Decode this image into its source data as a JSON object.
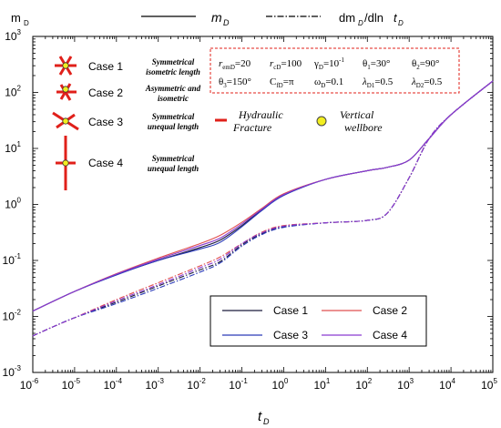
{
  "chart_data": {
    "type": "line",
    "log_x": true,
    "log_y": true,
    "xlim": [
      1e-06,
      100000.0
    ],
    "ylim": [
      0.001,
      1000.0
    ],
    "xlabel": {
      "main": "t",
      "sub": "D"
    },
    "ylabel": {
      "main": "m",
      "sub": "D"
    },
    "x_ticks": [
      {
        "exp": -6,
        "label_base": "10",
        "label_exp": "-6"
      },
      {
        "exp": -5,
        "label_base": "10",
        "label_exp": "-5"
      },
      {
        "exp": -4,
        "label_base": "10",
        "label_exp": "-4"
      },
      {
        "exp": -3,
        "label_base": "10",
        "label_exp": "-3"
      },
      {
        "exp": -2,
        "label_base": "10",
        "label_exp": "-2"
      },
      {
        "exp": -1,
        "label_base": "10",
        "label_exp": "-1"
      },
      {
        "exp": 0,
        "label_base": "10",
        "label_exp": "0"
      },
      {
        "exp": 1,
        "label_base": "10",
        "label_exp": "1"
      },
      {
        "exp": 2,
        "label_base": "10",
        "label_exp": "2"
      },
      {
        "exp": 3,
        "label_base": "10",
        "label_exp": "3"
      },
      {
        "exp": 4,
        "label_base": "10",
        "label_exp": "4"
      },
      {
        "exp": 5,
        "label_base": "10",
        "label_exp": "5"
      }
    ],
    "y_ticks": [
      {
        "exp": -3,
        "label_base": "10",
        "label_exp": "-3"
      },
      {
        "exp": -2,
        "label_base": "10",
        "label_exp": "-2"
      },
      {
        "exp": -1,
        "label_base": "10",
        "label_exp": "-1"
      },
      {
        "exp": 0,
        "label_base": "10",
        "label_exp": "0"
      },
      {
        "exp": 1,
        "label_base": "10",
        "label_exp": "1"
      },
      {
        "exp": 2,
        "label_base": "10",
        "label_exp": "2"
      },
      {
        "exp": 3,
        "label_base": "10",
        "label_exp": "3"
      }
    ],
    "grid": false,
    "line_style_legend": {
      "solid": {
        "main": "m",
        "sub": "D"
      },
      "dashdot": {
        "prefix": "dm",
        "sub1": "D",
        "mid": "/dln",
        "t": "t",
        "sub2": "D"
      }
    },
    "series": [
      {
        "name": "Case 1",
        "color": "#1a1a3a",
        "solid": [
          [
            1e-06,
            0.0125
          ],
          [
            1e-05,
            0.028
          ],
          [
            0.0001,
            0.056
          ],
          [
            0.001,
            0.1
          ],
          [
            0.01,
            0.17
          ],
          [
            0.03,
            0.23
          ],
          [
            0.1,
            0.42
          ],
          [
            0.3,
            0.8
          ],
          [
            1,
            1.5
          ],
          [
            10,
            2.8
          ],
          [
            100,
            4.0
          ],
          [
            300,
            4.6
          ],
          [
            1000,
            6.2
          ],
          [
            3000,
            15
          ],
          [
            10000,
            40
          ],
          [
            100000.0,
            160
          ]
        ],
        "deriv": [
          [
            1e-06,
            0.0045
          ],
          [
            3e-06,
            0.0065
          ],
          [
            1e-05,
            0.0095
          ],
          [
            0.0001,
            0.018
          ],
          [
            0.001,
            0.035
          ],
          [
            0.01,
            0.068
          ],
          [
            0.03,
            0.095
          ],
          [
            0.1,
            0.19
          ],
          [
            0.3,
            0.3
          ],
          [
            1,
            0.4
          ],
          [
            10,
            0.47
          ],
          [
            100,
            0.52
          ],
          [
            300,
            0.7
          ],
          [
            1000,
            3.0
          ],
          [
            3000,
            15
          ],
          [
            10000,
            40
          ],
          [
            100000.0,
            160
          ]
        ]
      },
      {
        "name": "Case 2",
        "color": "#e05050",
        "solid": [
          [
            1e-06,
            0.0125
          ],
          [
            1e-05,
            0.028
          ],
          [
            0.0001,
            0.058
          ],
          [
            0.001,
            0.11
          ],
          [
            0.01,
            0.2
          ],
          [
            0.03,
            0.28
          ],
          [
            0.1,
            0.48
          ],
          [
            0.3,
            0.85
          ],
          [
            1,
            1.55
          ],
          [
            10,
            2.8
          ],
          [
            100,
            4.0
          ],
          [
            300,
            4.6
          ],
          [
            1000,
            6.2
          ],
          [
            3000,
            15
          ],
          [
            10000,
            40
          ],
          [
            100000.0,
            160
          ]
        ],
        "deriv": [
          [
            1e-06,
            0.0045
          ],
          [
            3e-06,
            0.0065
          ],
          [
            1e-05,
            0.0095
          ],
          [
            0.0001,
            0.02
          ],
          [
            0.001,
            0.04
          ],
          [
            0.01,
            0.08
          ],
          [
            0.03,
            0.115
          ],
          [
            0.1,
            0.2
          ],
          [
            0.3,
            0.32
          ],
          [
            1,
            0.42
          ],
          [
            10,
            0.47
          ],
          [
            100,
            0.52
          ],
          [
            300,
            0.7
          ],
          [
            1000,
            3.0
          ],
          [
            3000,
            15
          ],
          [
            10000,
            40
          ],
          [
            100000.0,
            160
          ]
        ]
      },
      {
        "name": "Case 3",
        "color": "#2a3ab8",
        "solid": [
          [
            1e-06,
            0.0125
          ],
          [
            1e-05,
            0.028
          ],
          [
            0.0001,
            0.055
          ],
          [
            0.001,
            0.1
          ],
          [
            0.01,
            0.16
          ],
          [
            0.03,
            0.21
          ],
          [
            0.1,
            0.4
          ],
          [
            0.3,
            0.78
          ],
          [
            1,
            1.45
          ],
          [
            10,
            2.8
          ],
          [
            100,
            4.0
          ],
          [
            300,
            4.6
          ],
          [
            1000,
            6.2
          ],
          [
            3000,
            15
          ],
          [
            10000,
            40
          ],
          [
            100000.0,
            160
          ]
        ],
        "deriv": [
          [
            1e-06,
            0.0045
          ],
          [
            3e-06,
            0.0065
          ],
          [
            1e-05,
            0.0095
          ],
          [
            0.0001,
            0.017
          ],
          [
            0.001,
            0.032
          ],
          [
            0.01,
            0.062
          ],
          [
            0.03,
            0.09
          ],
          [
            0.1,
            0.18
          ],
          [
            0.3,
            0.29
          ],
          [
            1,
            0.39
          ],
          [
            10,
            0.47
          ],
          [
            100,
            0.52
          ],
          [
            300,
            0.7
          ],
          [
            1000,
            3.0
          ],
          [
            3000,
            15
          ],
          [
            10000,
            40
          ],
          [
            100000.0,
            160
          ]
        ]
      },
      {
        "name": "Case 4",
        "color": "#8a3ad0",
        "solid": [
          [
            1e-06,
            0.0125
          ],
          [
            1e-05,
            0.028
          ],
          [
            0.0001,
            0.057
          ],
          [
            0.001,
            0.105
          ],
          [
            0.01,
            0.185
          ],
          [
            0.03,
            0.25
          ],
          [
            0.1,
            0.45
          ],
          [
            0.3,
            0.82
          ],
          [
            1,
            1.5
          ],
          [
            10,
            2.8
          ],
          [
            100,
            4.0
          ],
          [
            300,
            4.6
          ],
          [
            1000,
            6.2
          ],
          [
            3000,
            15
          ],
          [
            10000,
            40
          ],
          [
            100000.0,
            160
          ]
        ],
        "deriv": [
          [
            1e-06,
            0.0045
          ],
          [
            3e-06,
            0.0065
          ],
          [
            1e-05,
            0.0095
          ],
          [
            0.0001,
            0.019
          ],
          [
            0.001,
            0.037
          ],
          [
            0.01,
            0.074
          ],
          [
            0.03,
            0.105
          ],
          [
            0.1,
            0.2
          ],
          [
            0.3,
            0.31
          ],
          [
            1,
            0.41
          ],
          [
            10,
            0.47
          ],
          [
            100,
            0.52
          ],
          [
            300,
            0.7
          ],
          [
            1000,
            3.0
          ],
          [
            3000,
            15
          ],
          [
            10000,
            40
          ],
          [
            100000.0,
            160
          ]
        ]
      }
    ],
    "case_legend": [
      {
        "label": "Case 1",
        "desc_line1": "Symmetrical",
        "desc_line2": "isometric length",
        "icon": "star-fracture-symmetric"
      },
      {
        "label": "Case 2",
        "desc_line1": "Asymmetric and",
        "desc_line2": "isometric",
        "icon": "star-fracture-asymmetric"
      },
      {
        "label": "Case 3",
        "desc_line1": "Symmetrical",
        "desc_line2": "unequal length",
        "icon": "x-fracture-unequal"
      },
      {
        "label": "Case 4",
        "desc_line1": "Symmetrical",
        "desc_line2": "unequal length",
        "icon": "cross-fracture-unequal"
      }
    ],
    "symbol_legend": {
      "fracture_line1": "Hydraulic",
      "fracture_line2": "Fracture",
      "wellbore_line1": "Vertical",
      "wellbore_line2": "wellbore",
      "fracture_color": "#e0201a",
      "wellbore_color": "#f2ee20"
    },
    "params": {
      "row1": [
        {
          "sym": "r",
          "sub": "emD",
          "val": "=20"
        },
        {
          "sym": "r",
          "sub": "cD",
          "val": "=100"
        },
        {
          "sym": "γ",
          "sub": "D",
          "val": "=10",
          "sup": "-1"
        },
        {
          "sym": "θ",
          "sub": "1",
          "val": "=30°"
        },
        {
          "sym": "θ",
          "sub": "2",
          "val": "=90°"
        }
      ],
      "row2": [
        {
          "sym": "θ",
          "sub": "3",
          "val": "=150°"
        },
        {
          "sym": "C",
          "sub": "fD",
          "val": "=π"
        },
        {
          "sym": "ω",
          "sub": "D",
          "val": "=0.1"
        },
        {
          "sym": "λ",
          "sub": "D1",
          "val": "=0.5"
        },
        {
          "sym": "λ",
          "sub": "D2",
          "val": "=0.5"
        }
      ]
    }
  }
}
